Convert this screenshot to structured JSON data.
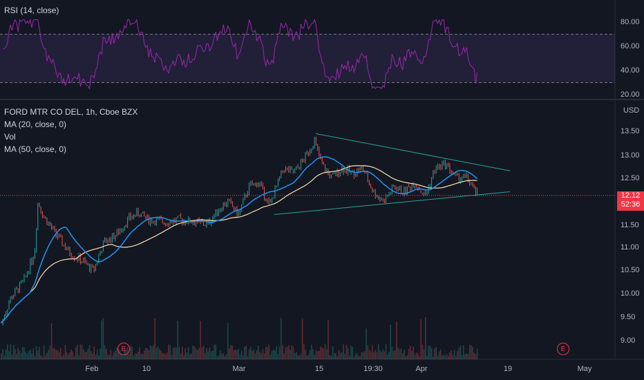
{
  "rsi_pane": {
    "label": "RSI (14, close)",
    "ticks": [
      "80.00",
      "60.00",
      "40.00",
      "20.00"
    ],
    "tick_values": [
      80,
      60,
      40,
      20
    ],
    "upper_band": 70,
    "lower_band": 30,
    "color": "#9c27b0"
  },
  "price_pane": {
    "title": "FORD MTR CO DEL, 1h, Cboe BZX",
    "indicators": [
      "MA (20, close, 0)",
      "Vol",
      "MA (50, close, 0)"
    ],
    "currency": "USD",
    "ticks": [
      "13.50",
      "13.00",
      "12.50",
      "12.00",
      "11.50",
      "11.00",
      "10.50",
      "10.00",
      "9.50",
      "9.00"
    ],
    "tick_values": [
      13.5,
      13.0,
      12.5,
      12.0,
      11.5,
      11.0,
      10.5,
      10.0,
      9.5,
      9.0
    ],
    "last_price": "12.12",
    "countdown": "52:36",
    "ma20_color": "#2196f3",
    "ma50_color": "#ffe0b2",
    "trendline_color": "#26a69a",
    "up_color": "#26a69a",
    "down_color": "#ef5350"
  },
  "time_axis": {
    "labels": [
      "Feb",
      "10",
      "Mar",
      "15",
      "19:30",
      "Apr",
      "19",
      "May"
    ]
  },
  "earnings": {
    "label": "E"
  }
}
